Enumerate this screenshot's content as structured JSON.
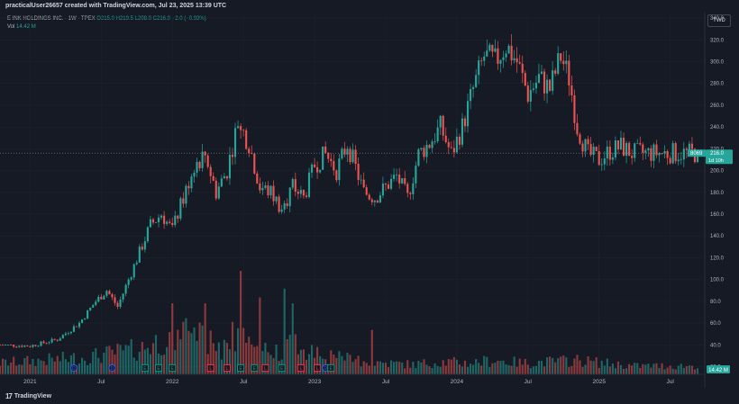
{
  "caption": "practicalUser26657 created with TradingView.com, Jul 23, 2025 13:39 UTC",
  "legend": {
    "name": "E INK HOLDINGS INC. · 1W · TPEX",
    "o": "O215.0",
    "h": "H219.5",
    "l": "L208.0",
    "c": "C216.0",
    "chg": "−2.0 (−0.93%)",
    "vol_label": "Vol",
    "vol_value": "14.42 M"
  },
  "currency": "TWD",
  "price_tag": {
    "symbol": "8069",
    "price": "216.0",
    "countdown": "1d 10h"
  },
  "vol_tag": "14.42 M",
  "logo": "TradingView",
  "chart_data": {
    "type": "candlestick",
    "interval": "1W",
    "y_axis_ticks": [
      20,
      40,
      60,
      80,
      100,
      120,
      140,
      160,
      180,
      200,
      220,
      240,
      260,
      280,
      300,
      320,
      340
    ],
    "y_axis_tick_labels": [
      "20.0",
      "40.0",
      "60.0",
      "80.0",
      "100.0",
      "120.0",
      "140.0",
      "160.0",
      "180.0",
      "200.0",
      "220.0",
      "240.0",
      "260.0",
      "280.0",
      "300.0",
      "320.0",
      "340.0"
    ],
    "ylim": [
      13,
      345
    ],
    "x_axis_labels": [
      "2021",
      "Jul",
      "2022",
      "Jul",
      "2023",
      "Jul",
      "2024",
      "Jul",
      "2025",
      "Jul"
    ],
    "x_axis_label_weeks": [
      0,
      26,
      52,
      78,
      104,
      130,
      156,
      182,
      208,
      234
    ],
    "start_week": -11,
    "end_week": 244,
    "last_price": 216.0,
    "price_keypoints": [
      [
        -11,
        40
      ],
      [
        0,
        39
      ],
      [
        10,
        45
      ],
      [
        18,
        60
      ],
      [
        24,
        80
      ],
      [
        28,
        90
      ],
      [
        32,
        75
      ],
      [
        36,
        100
      ],
      [
        40,
        125
      ],
      [
        44,
        150
      ],
      [
        48,
        160
      ],
      [
        52,
        145
      ],
      [
        56,
        175
      ],
      [
        60,
        205
      ],
      [
        64,
        215
      ],
      [
        68,
        180
      ],
      [
        72,
        200
      ],
      [
        76,
        245
      ],
      [
        80,
        225
      ],
      [
        84,
        185
      ],
      [
        88,
        180
      ],
      [
        92,
        165
      ],
      [
        96,
        185
      ],
      [
        100,
        175
      ],
      [
        104,
        205
      ],
      [
        108,
        215
      ],
      [
        112,
        200
      ],
      [
        116,
        225
      ],
      [
        118,
        210
      ],
      [
        122,
        180
      ],
      [
        126,
        175
      ],
      [
        130,
        185
      ],
      [
        134,
        195
      ],
      [
        138,
        175
      ],
      [
        142,
        215
      ],
      [
        146,
        225
      ],
      [
        150,
        240
      ],
      [
        154,
        215
      ],
      [
        158,
        240
      ],
      [
        162,
        275
      ],
      [
        166,
        305
      ],
      [
        170,
        300
      ],
      [
        174,
        315
      ],
      [
        178,
        300
      ],
      [
        182,
        270
      ],
      [
        186,
        285
      ],
      [
        190,
        275
      ],
      [
        194,
        305
      ],
      [
        197,
        285
      ],
      [
        200,
        240
      ],
      [
        204,
        215
      ],
      [
        208,
        210
      ],
      [
        212,
        218
      ],
      [
        216,
        222
      ],
      [
        220,
        216
      ]
    ],
    "volume_scale_max": 70,
    "volume_keypoints": [
      [
        -11,
        8
      ],
      [
        20,
        12
      ],
      [
        40,
        18
      ],
      [
        50,
        26
      ],
      [
        55,
        30
      ],
      [
        58,
        28
      ],
      [
        65,
        25
      ],
      [
        70,
        20
      ],
      [
        75,
        30
      ],
      [
        80,
        26
      ],
      [
        88,
        15
      ],
      [
        95,
        22
      ],
      [
        100,
        20
      ],
      [
        104,
        18
      ],
      [
        110,
        12
      ],
      [
        120,
        10
      ],
      [
        130,
        8
      ],
      [
        140,
        7
      ],
      [
        150,
        9
      ],
      [
        160,
        8
      ],
      [
        170,
        10
      ],
      [
        180,
        8
      ],
      [
        190,
        9
      ],
      [
        200,
        10
      ],
      [
        210,
        8
      ],
      [
        220,
        6
      ]
    ],
    "volume_spikes": [
      [
        52,
        48
      ],
      [
        57,
        38
      ],
      [
        64,
        48
      ],
      [
        77,
        70
      ],
      [
        84,
        52
      ],
      [
        93,
        58
      ],
      [
        96,
        48
      ],
      [
        125,
        30
      ]
    ],
    "events": [
      {
        "week": 16,
        "type": "D"
      },
      {
        "week": 30,
        "type": "D"
      },
      {
        "week": 42,
        "type": "E"
      },
      {
        "week": 47,
        "type": "E"
      },
      {
        "week": 52,
        "type": "E"
      },
      {
        "week": 66,
        "type": "L"
      },
      {
        "week": 72,
        "type": "L"
      },
      {
        "week": 77,
        "type": "E"
      },
      {
        "week": 82,
        "type": "E"
      },
      {
        "week": 86,
        "type": "L"
      },
      {
        "week": 92,
        "type": "E"
      },
      {
        "week": 99,
        "type": "L"
      },
      {
        "week": 105,
        "type": "L"
      },
      {
        "week": 108,
        "type": "D"
      },
      {
        "week": 110,
        "type": "E"
      }
    ],
    "event_labels": {
      "D": "D",
      "E": "E",
      "L": "L"
    }
  }
}
